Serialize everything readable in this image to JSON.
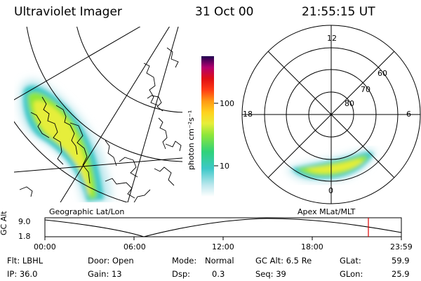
{
  "header": {
    "instrument": "Ultraviolet Imager",
    "date": "31 Oct 00",
    "time": "21:55:15 UT"
  },
  "geo_panel": {
    "label": "Geographic Lat/Lon"
  },
  "polar_panel": {
    "label": "Apex MLat/MLT",
    "mlt_labels": {
      "top": "12",
      "left": "18",
      "right": "6",
      "bottom": "0"
    },
    "lat_labels": [
      "60",
      "70",
      "80"
    ]
  },
  "colorbar": {
    "unit_label": "photon cm⁻²s⁻¹",
    "tick_labels": [
      "100",
      "10"
    ],
    "scale": "log",
    "colors": [
      "#ffffff",
      "#bfe8ee",
      "#3cc8c8",
      "#2fd27a",
      "#8ee63a",
      "#e6ee3a",
      "#ffd21e",
      "#ff9a14",
      "#ff3c14",
      "#e00f14",
      "#b4006e",
      "#1e0050"
    ]
  },
  "orbit_plot": {
    "ylabel": "GC Alt",
    "y_ticks": [
      "9.0",
      "1.8"
    ],
    "x_ticks": [
      "00:00",
      "06:00",
      "12:00",
      "18:00",
      "23:59"
    ],
    "marker_color": "#e00000"
  },
  "info": {
    "filter": "Flt: LBHL",
    "ip": "IP: 36.0",
    "door": "Door: Open",
    "gain": "Gain: 13",
    "mode_label": "Mode:",
    "mode_value": "Normal",
    "dsp_label": "Dsp:",
    "dsp_value": "0.3",
    "gc_alt": "GC Alt: 6.5 Re",
    "seq": "Seq: 39",
    "glat_label": "GLat:",
    "glat_value": "59.9",
    "glon_label": "GLon:",
    "glon_value": "25.9"
  }
}
